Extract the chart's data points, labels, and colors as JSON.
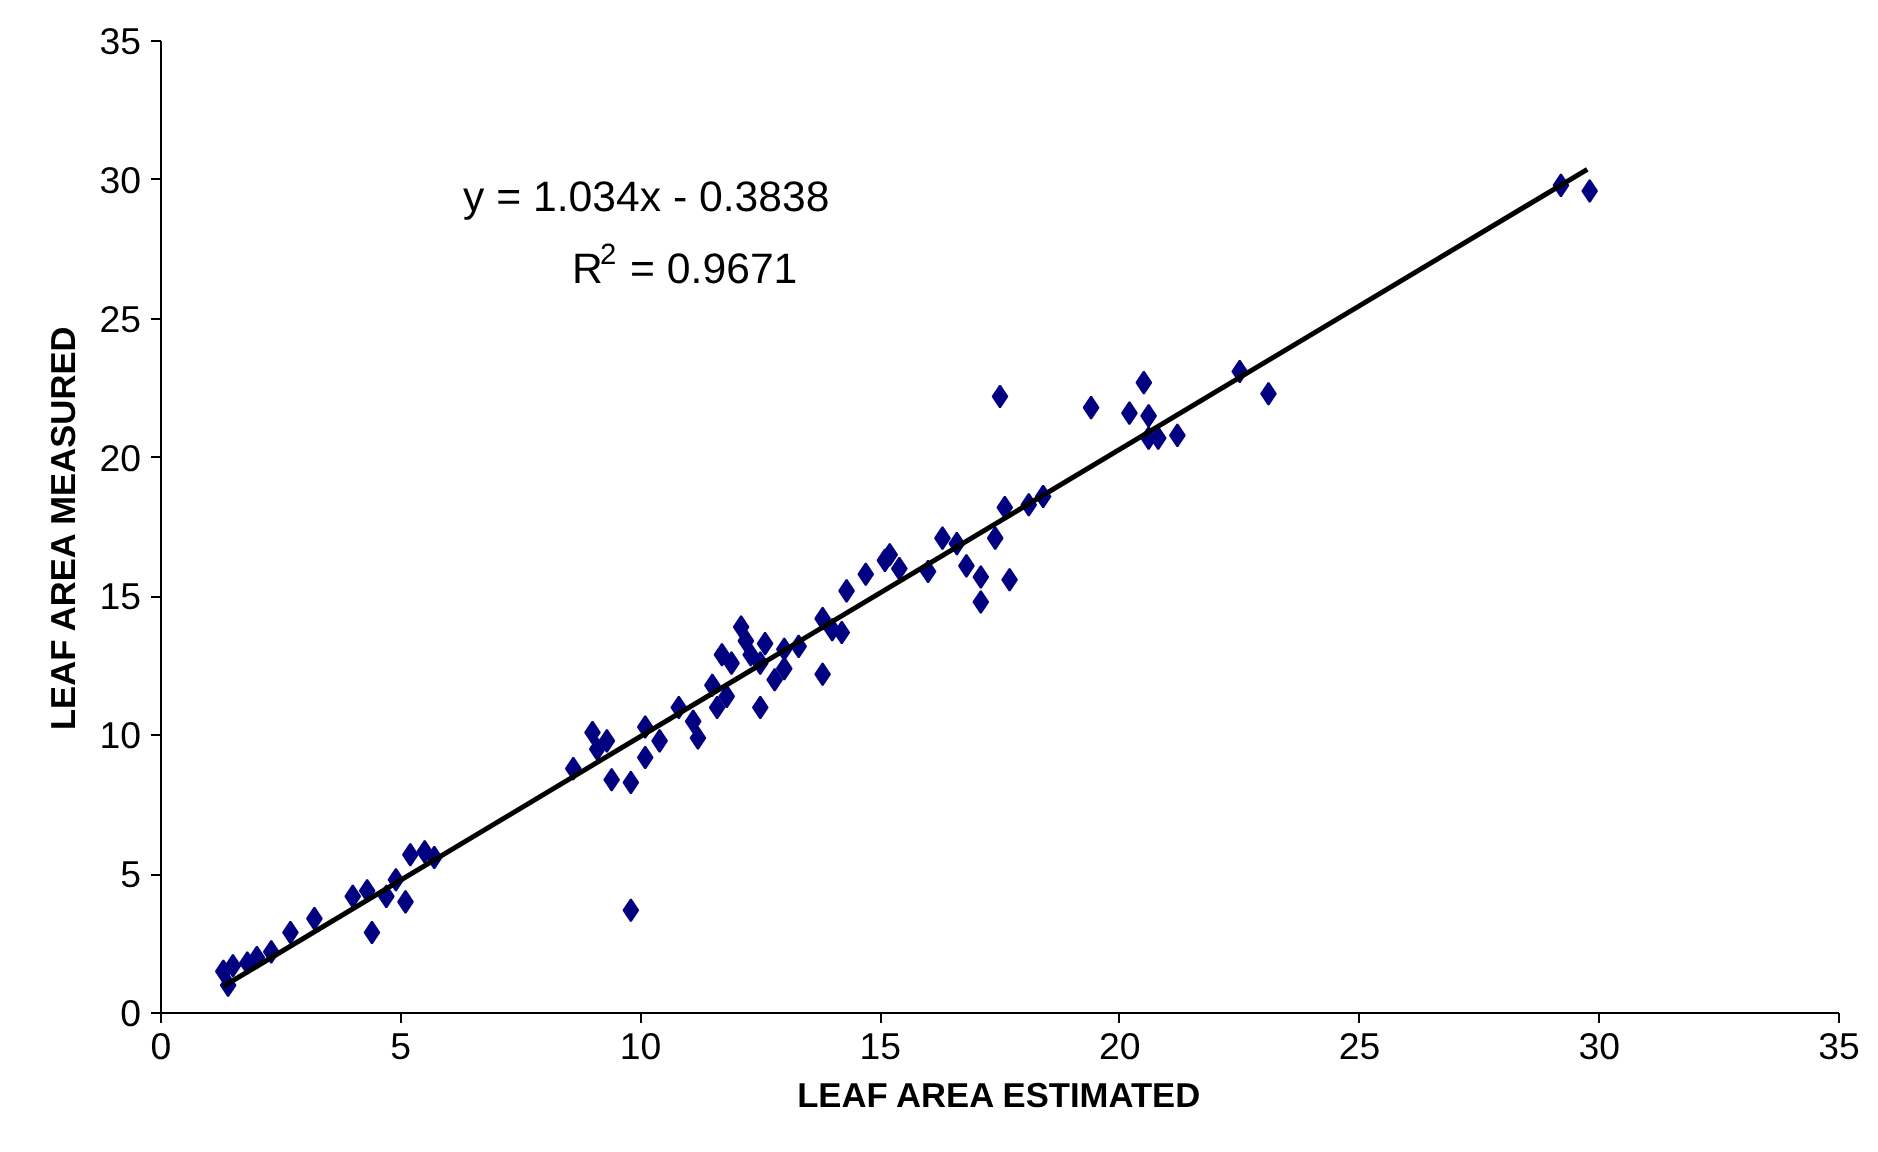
{
  "chart_data": {
    "type": "scatter",
    "xlabel": "LEAF AREA ESTIMATED",
    "ylabel": "LEAF AREA MEASURED",
    "xlim": [
      0,
      35
    ],
    "ylim": [
      0,
      35
    ],
    "xticks": [
      0,
      5,
      10,
      15,
      20,
      25,
      30,
      35
    ],
    "yticks": [
      0,
      5,
      10,
      15,
      20,
      25,
      30,
      35
    ],
    "grid": false,
    "marker": "diamond",
    "annotations": [
      "y = 1.034x - 0.3838",
      "R$^{2}$ = 0.9671"
    ],
    "series": [
      {
        "color": "#000080",
        "x": [
          1.3,
          1.4,
          1.5,
          1.8,
          2.0,
          2.3,
          2.7,
          3.2,
          4.0,
          4.3,
          4.4,
          4.7,
          4.9,
          5.1,
          5.2,
          5.5,
          5.7,
          8.6,
          9.0,
          9.1,
          9.3,
          9.4,
          9.8,
          9.8,
          10.1,
          10.1,
          10.4,
          10.8,
          11.1,
          11.2,
          11.5,
          11.7,
          11.6,
          11.8,
          11.9,
          12.1,
          12.2,
          12.3,
          12.5,
          12.5,
          12.6,
          12.8,
          13.0,
          13.0,
          13.3,
          13.8,
          13.8,
          14.0,
          14.2,
          14.3,
          14.7,
          15.1,
          15.2,
          15.4,
          16.0,
          16.3,
          16.6,
          16.8,
          17.1,
          17.1,
          17.4,
          17.5,
          17.6,
          17.7,
          18.1,
          18.4,
          19.4,
          20.2,
          20.5,
          20.6,
          20.6,
          20.8,
          21.2,
          22.5,
          23.1,
          29.2,
          29.8
        ],
        "values": [
          1.5,
          1.0,
          1.7,
          1.8,
          2.0,
          2.2,
          2.9,
          3.4,
          4.2,
          4.4,
          2.9,
          4.2,
          4.8,
          4.0,
          5.7,
          5.8,
          5.6,
          8.8,
          10.1,
          9.5,
          9.8,
          8.4,
          8.3,
          3.7,
          10.3,
          9.2,
          9.8,
          11.0,
          10.5,
          9.9,
          11.8,
          12.9,
          11.0,
          11.4,
          12.6,
          13.9,
          13.4,
          12.9,
          12.6,
          11.0,
          13.3,
          12.0,
          12.4,
          13.1,
          13.2,
          14.2,
          12.2,
          13.8,
          13.7,
          15.2,
          15.8,
          16.3,
          16.5,
          16.0,
          15.9,
          17.1,
          16.9,
          16.1,
          15.7,
          14.8,
          17.1,
          22.2,
          18.2,
          15.6,
          18.3,
          18.6,
          21.8,
          21.6,
          22.7,
          21.5,
          20.7,
          20.7,
          20.8,
          23.1,
          22.3,
          29.8,
          29.6
        ]
      },
      {
        "type": "line",
        "color": "#000000",
        "marker": "none",
        "line_style": "solid",
        "x": [
          1.3,
          29.75
        ],
        "values": [
          0.96,
          30.38
        ]
      }
    ]
  }
}
